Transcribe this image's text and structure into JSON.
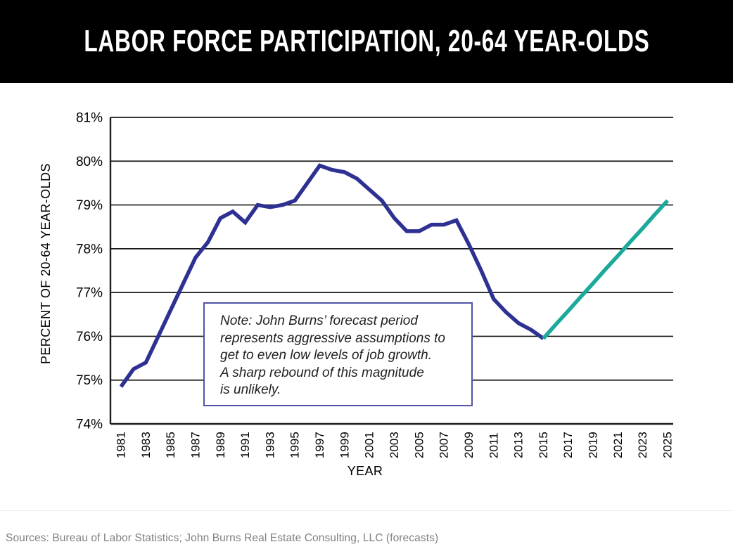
{
  "header": {
    "title": "LABOR FORCE PARTICIPATION, 20-64 YEAR-OLDS"
  },
  "chart_data": {
    "type": "line",
    "title": "LABOR FORCE PARTICIPATION, 20-64 YEAR-OLDS",
    "xlabel": "YEAR",
    "ylabel": "PERCENT OF 20-64 YEAR-OLDS",
    "xlim": [
      1981,
      2025
    ],
    "ylim": [
      74,
      81
    ],
    "x_tick_step": 2,
    "y_tick_suffix": "%",
    "grid": true,
    "legend": "none",
    "series": [
      {
        "name": "historical",
        "color": "#2e3192",
        "x": [
          1981,
          1982,
          1983,
          1984,
          1985,
          1986,
          1987,
          1988,
          1989,
          1990,
          1991,
          1992,
          1993,
          1994,
          1995,
          1996,
          1997,
          1998,
          1999,
          2000,
          2001,
          2002,
          2003,
          2004,
          2005,
          2006,
          2007,
          2008,
          2009,
          2010,
          2011,
          2012,
          2013,
          2014,
          2015
        ],
        "values": [
          74.85,
          75.25,
          75.4,
          76.0,
          76.6,
          77.2,
          77.8,
          78.15,
          78.7,
          78.85,
          78.6,
          79.0,
          78.95,
          79.0,
          79.1,
          79.5,
          79.9,
          79.8,
          79.75,
          79.6,
          79.35,
          79.1,
          78.7,
          78.4,
          78.4,
          78.55,
          78.55,
          78.65,
          78.1,
          77.5,
          76.85,
          76.55,
          76.3,
          76.15,
          75.95
        ]
      },
      {
        "name": "forecast",
        "color": "#1ba99c",
        "x": [
          2015,
          2016,
          2017,
          2018,
          2019,
          2020,
          2021,
          2022,
          2023,
          2024,
          2025
        ],
        "values": [
          75.95,
          76.27,
          76.58,
          76.9,
          77.21,
          77.53,
          77.84,
          78.16,
          78.47,
          78.79,
          79.1
        ]
      }
    ]
  },
  "note": {
    "text": "Note: John Burns’ forecast period\nrepresents aggressive assumptions to\nget to even low levels of job growth.\nA sharp rebound of this magnitude\nis unlikely."
  },
  "footer": {
    "sources": "Sources: Bureau of Labor Statistics; John Burns Real Estate Consulting, LLC (forecasts)"
  },
  "colors": {
    "header_bg": "#000000",
    "title_text": "#ffffff",
    "historical_line": "#2e3192",
    "forecast_line": "#1ba99c",
    "gridline": "#1a1a1a",
    "note_border": "#5055a5",
    "source_text": "#808080"
  }
}
